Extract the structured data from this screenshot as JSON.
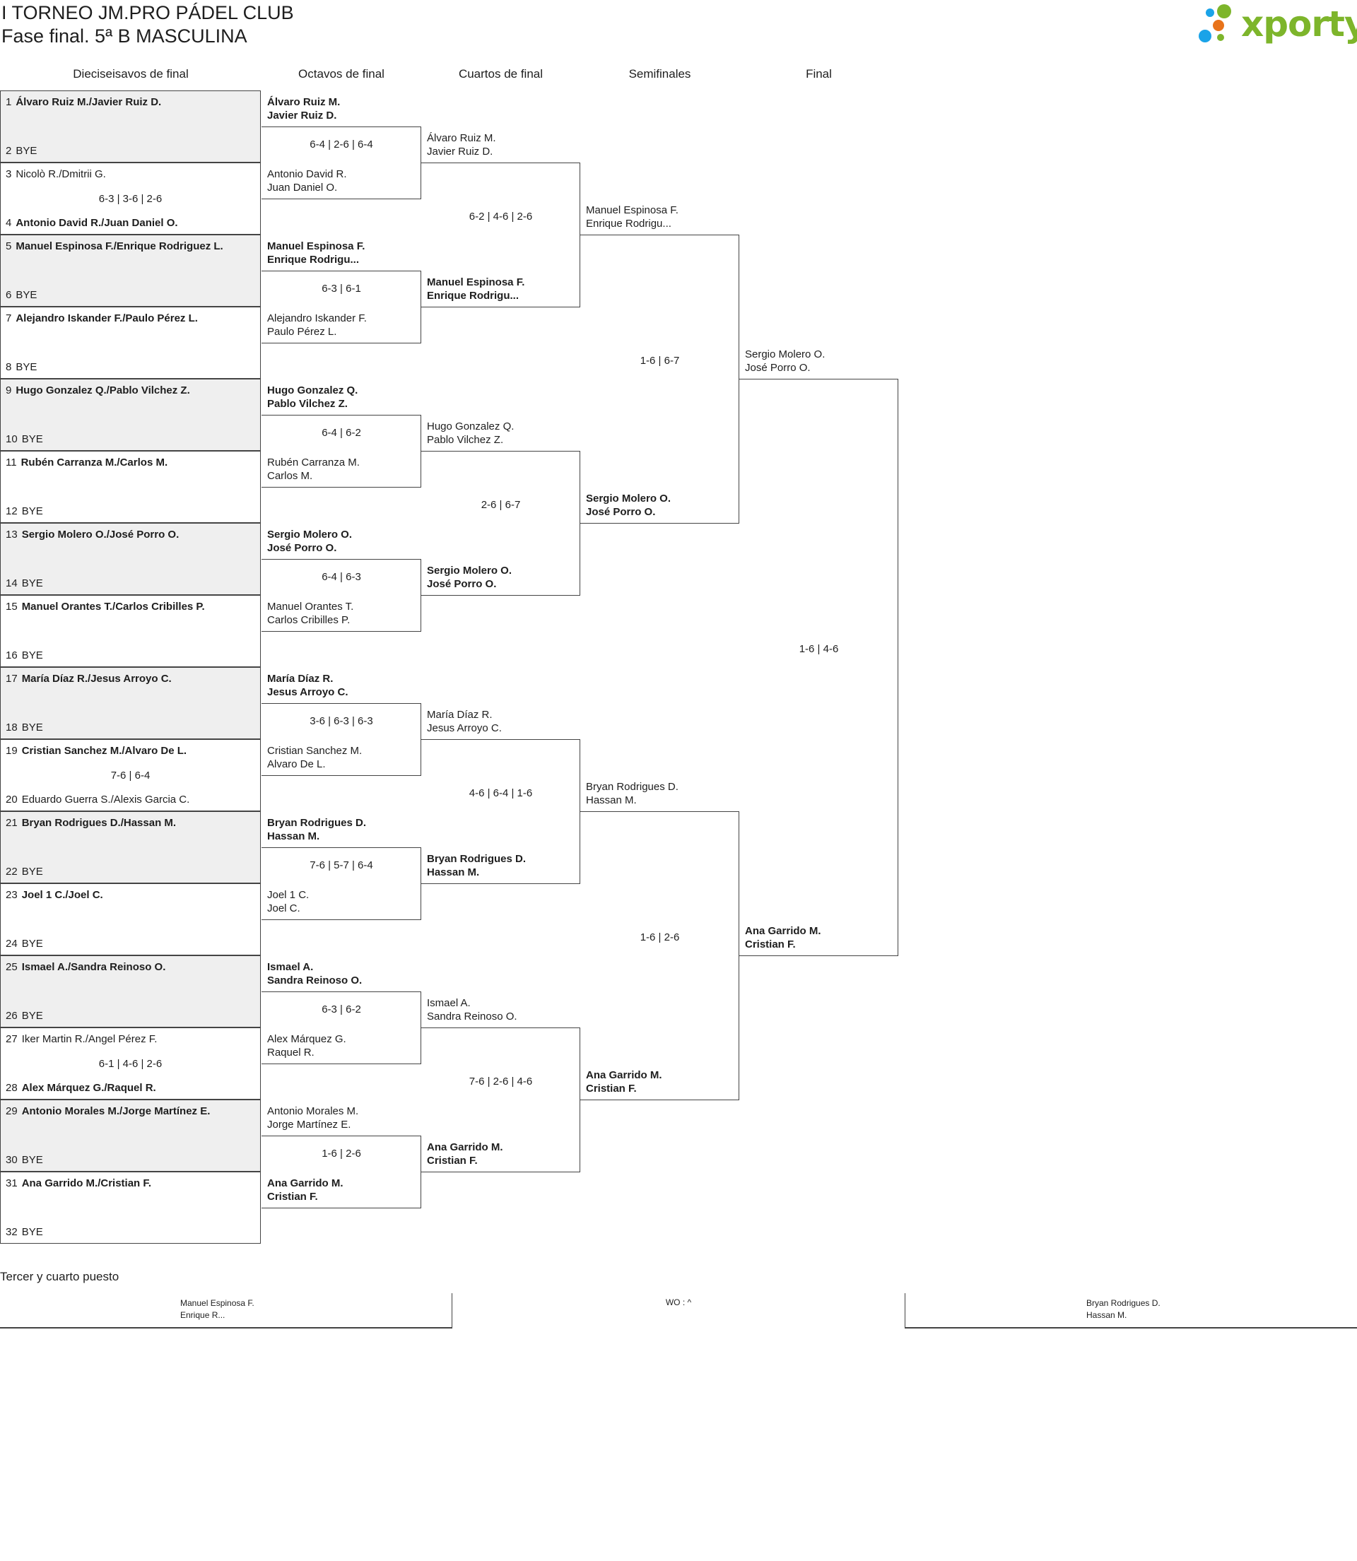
{
  "header": {
    "title": "I TORNEO JM.PRO PÁDEL CLUB",
    "subtitle": "Fase final. 5ª B MASCULINA",
    "logo_text": "xporty",
    "colors": {
      "logo_green": "#7db52b",
      "logo_blue": "#1aa3e8",
      "logo_orange": "#e8731a",
      "row_gray": "#efefef"
    }
  },
  "columns": [
    "Dieciseisavos de final",
    "Octavos de final",
    "Cuartos de final",
    "Semifinales",
    "Final"
  ],
  "round1": [
    {
      "a": {
        "n": "1",
        "name": "Álvaro Ruiz M./Javier Ruiz D.",
        "bold": true
      },
      "b": {
        "n": "2",
        "name": "BYE",
        "bold": false
      },
      "score": ""
    },
    {
      "a": {
        "n": "3",
        "name": "Nicolò R./Dmitrii G.",
        "bold": false
      },
      "b": {
        "n": "4",
        "name": "Antonio David R./Juan Daniel O.",
        "bold": true
      },
      "score": "6-3 | 3-6 | 2-6"
    },
    {
      "a": {
        "n": "5",
        "name": "Manuel Espinosa F./Enrique Rodriguez L.",
        "bold": true
      },
      "b": {
        "n": "6",
        "name": "BYE",
        "bold": false
      },
      "score": ""
    },
    {
      "a": {
        "n": "7",
        "name": "Alejandro Iskander F./Paulo Pérez L.",
        "bold": true
      },
      "b": {
        "n": "8",
        "name": "BYE",
        "bold": false
      },
      "score": ""
    },
    {
      "a": {
        "n": "9",
        "name": "Hugo Gonzalez Q./Pablo Vilchez Z.",
        "bold": true
      },
      "b": {
        "n": "10",
        "name": "BYE",
        "bold": false
      },
      "score": ""
    },
    {
      "a": {
        "n": "11",
        "name": "Rubén Carranza M./Carlos M.",
        "bold": true
      },
      "b": {
        "n": "12",
        "name": "BYE",
        "bold": false
      },
      "score": ""
    },
    {
      "a": {
        "n": "13",
        "name": "Sergio Molero O./José Porro O.",
        "bold": true
      },
      "b": {
        "n": "14",
        "name": "BYE",
        "bold": false
      },
      "score": ""
    },
    {
      "a": {
        "n": "15",
        "name": "Manuel Orantes T./Carlos Cribilles P.",
        "bold": true
      },
      "b": {
        "n": "16",
        "name": "BYE",
        "bold": false
      },
      "score": ""
    },
    {
      "a": {
        "n": "17",
        "name": "María Díaz R./Jesus Arroyo C.",
        "bold": true
      },
      "b": {
        "n": "18",
        "name": "BYE",
        "bold": false
      },
      "score": ""
    },
    {
      "a": {
        "n": "19",
        "name": "Cristian Sanchez M./Alvaro De L.",
        "bold": true
      },
      "b": {
        "n": "20",
        "name": "Eduardo Guerra S./Alexis Garcia C.",
        "bold": false
      },
      "score": "7-6 | 6-4"
    },
    {
      "a": {
        "n": "21",
        "name": "Bryan Rodrigues D./Hassan M.",
        "bold": true
      },
      "b": {
        "n": "22",
        "name": "BYE",
        "bold": false
      },
      "score": ""
    },
    {
      "a": {
        "n": "23",
        "name": "Joel 1 C./Joel C.",
        "bold": true
      },
      "b": {
        "n": "24",
        "name": "BYE",
        "bold": false
      },
      "score": ""
    },
    {
      "a": {
        "n": "25",
        "name": "Ismael A./Sandra Reinoso O.",
        "bold": true
      },
      "b": {
        "n": "26",
        "name": "BYE",
        "bold": false
      },
      "score": ""
    },
    {
      "a": {
        "n": "27",
        "name": "Iker Martin R./Angel Pérez F.",
        "bold": false
      },
      "b": {
        "n": "28",
        "name": "Alex Márquez G./Raquel R.",
        "bold": true
      },
      "score": "6-1 | 4-6 | 2-6"
    },
    {
      "a": {
        "n": "29",
        "name": "Antonio Morales M./Jorge Martínez E.",
        "bold": true
      },
      "b": {
        "n": "30",
        "name": "BYE",
        "bold": false
      },
      "score": ""
    },
    {
      "a": {
        "n": "31",
        "name": "Ana Garrido M./Cristian F.",
        "bold": true
      },
      "b": {
        "n": "32",
        "name": "BYE",
        "bold": false
      },
      "score": ""
    }
  ],
  "rounds": [
    [
      {
        "top": [
          "Álvaro Ruiz M.",
          "Javier Ruiz D."
        ],
        "top_bold": true,
        "bottom": [
          "Antonio David R.",
          "Juan Daniel O."
        ],
        "bottom_bold": false,
        "score": "6-4 | 2-6 | 6-4"
      },
      {
        "top": [
          "Manuel Espinosa F.",
          "Enrique Rodrigu..."
        ],
        "top_bold": true,
        "bottom": [
          "Alejandro Iskander F.",
          "Paulo Pérez L."
        ],
        "bottom_bold": false,
        "score": "6-3 | 6-1"
      },
      {
        "top": [
          "Hugo Gonzalez Q.",
          "Pablo Vilchez Z."
        ],
        "top_bold": true,
        "bottom": [
          "Rubén Carranza M.",
          "Carlos M."
        ],
        "bottom_bold": false,
        "score": "6-4 | 6-2"
      },
      {
        "top": [
          "Sergio Molero O.",
          "José Porro O."
        ],
        "top_bold": true,
        "bottom": [
          "Manuel Orantes T.",
          "Carlos Cribilles P."
        ],
        "bottom_bold": false,
        "score": "6-4 | 6-3"
      },
      {
        "top": [
          "María Díaz R.",
          "Jesus Arroyo C."
        ],
        "top_bold": true,
        "bottom": [
          "Cristian Sanchez M.",
          "Alvaro De L."
        ],
        "bottom_bold": false,
        "score": "3-6 | 6-3 | 6-3"
      },
      {
        "top": [
          "Bryan Rodrigues D.",
          "Hassan M."
        ],
        "top_bold": true,
        "bottom": [
          "Joel 1 C.",
          "Joel C."
        ],
        "bottom_bold": false,
        "score": "7-6 | 5-7 | 6-4"
      },
      {
        "top": [
          "Ismael A.",
          "Sandra Reinoso O."
        ],
        "top_bold": true,
        "bottom": [
          "Alex Márquez G.",
          "Raquel R."
        ],
        "bottom_bold": false,
        "score": "6-3 | 6-2"
      },
      {
        "top": [
          "Antonio Morales M.",
          "Jorge Martínez E."
        ],
        "top_bold": false,
        "bottom": [
          "Ana Garrido M.",
          "Cristian F."
        ],
        "bottom_bold": true,
        "score": "1-6 | 2-6"
      }
    ],
    [
      {
        "top": [
          "Álvaro Ruiz M.",
          "Javier Ruiz D."
        ],
        "top_bold": false,
        "bottom": [
          "Manuel Espinosa F.",
          "Enrique Rodrigu..."
        ],
        "bottom_bold": true,
        "score": "6-2 | 4-6 | 2-6"
      },
      {
        "top": [
          "Hugo Gonzalez Q.",
          "Pablo Vilchez Z."
        ],
        "top_bold": false,
        "bottom": [
          "Sergio Molero O.",
          "José Porro O."
        ],
        "bottom_bold": true,
        "score": "2-6 | 6-7"
      },
      {
        "top": [
          "María Díaz R.",
          "Jesus Arroyo C."
        ],
        "top_bold": false,
        "bottom": [
          "Bryan Rodrigues D.",
          "Hassan M."
        ],
        "bottom_bold": true,
        "score": "4-6 | 6-4 | 1-6"
      },
      {
        "top": [
          "Ismael A.",
          "Sandra Reinoso O."
        ],
        "top_bold": false,
        "bottom": [
          "Ana Garrido M.",
          "Cristian F."
        ],
        "bottom_bold": true,
        "score": "7-6 | 2-6 | 4-6"
      }
    ],
    [
      {
        "top": [
          "Manuel Espinosa F.",
          "Enrique Rodrigu..."
        ],
        "top_bold": false,
        "bottom": [
          "Sergio Molero O.",
          "José Porro O."
        ],
        "bottom_bold": true,
        "score": "1-6 | 6-7"
      },
      {
        "top": [
          "Bryan Rodrigues D.",
          "Hassan M."
        ],
        "top_bold": false,
        "bottom": [
          "Ana Garrido M.",
          "Cristian F."
        ],
        "bottom_bold": true,
        "score": "1-6 | 2-6"
      }
    ],
    [
      {
        "top": [
          "Sergio Molero O.",
          "José Porro O."
        ],
        "top_bold": false,
        "bottom": [
          "Ana Garrido M.",
          "Cristian F."
        ],
        "bottom_bold": true,
        "score": "1-6 | 4-6"
      }
    ]
  ],
  "third_place": {
    "heading": "Tercer y cuarto puesto",
    "left": [
      "Manuel Espinosa F.",
      "Enrique R..."
    ],
    "result": "WO : ^",
    "right": [
      "Bryan Rodrigues D.",
      "Hassan M."
    ]
  }
}
